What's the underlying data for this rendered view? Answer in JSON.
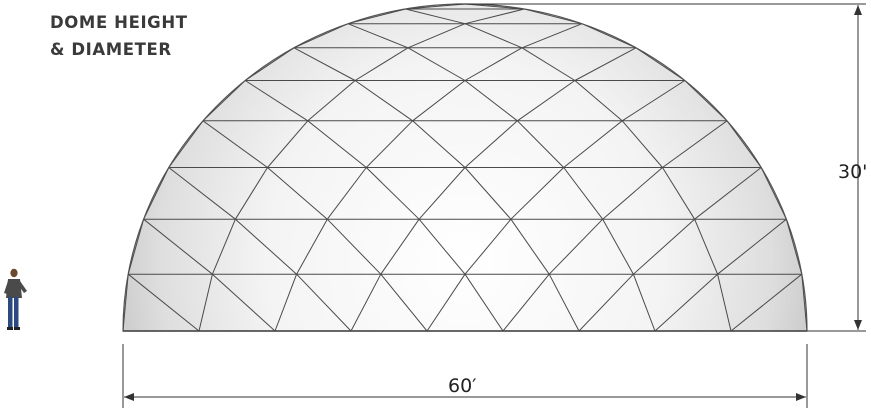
{
  "title": {
    "line1": "DOME HEIGHT",
    "line2": "& DIAMETER"
  },
  "dimensions": {
    "height_label": "30'",
    "diameter_label": "60′"
  },
  "colors": {
    "dome_face": "#f7f7f7",
    "dome_shade": "#d9d9d9",
    "strut": "#4a4a4a",
    "dimension_line": "#333333",
    "person_jacket": "#4a4a4a",
    "person_jeans": "#2c4a80"
  },
  "icons": [
    "human-figure-icon"
  ]
}
